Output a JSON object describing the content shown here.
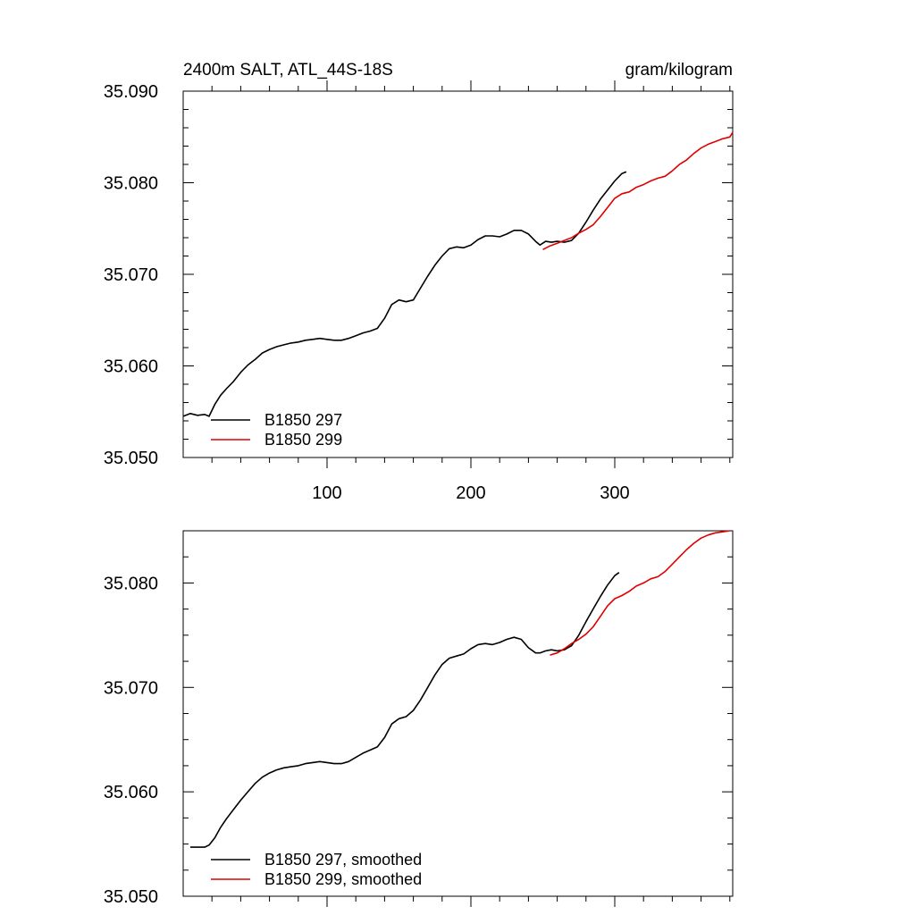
{
  "chart_data": [
    {
      "type": "line",
      "title": "2400m SALT, ATL_44S-18S",
      "units": "gram/kilogram",
      "xlabel": "",
      "ylabel": "",
      "xlim": [
        0,
        382
      ],
      "ylim": [
        35.05,
        35.09
      ],
      "x_ticks": [
        100,
        200,
        300
      ],
      "x_tick_labels": [
        "100",
        "200",
        "300"
      ],
      "y_ticks": [
        35.05,
        35.06,
        35.07,
        35.08,
        35.09
      ],
      "y_tick_labels": [
        "35.050",
        "35.060",
        "35.070",
        "35.080",
        "35.090"
      ],
      "legend_position": "bottom-left",
      "series": [
        {
          "name": "B1850 297",
          "color": "#000000",
          "x": [
            0,
            5,
            10,
            15,
            18,
            22,
            26,
            30,
            35,
            40,
            45,
            50,
            55,
            60,
            65,
            70,
            75,
            80,
            85,
            90,
            95,
            100,
            105,
            110,
            115,
            120,
            125,
            130,
            135,
            140,
            145,
            150,
            155,
            160,
            165,
            170,
            175,
            180,
            185,
            190,
            195,
            200,
            205,
            210,
            215,
            220,
            225,
            230,
            235,
            240,
            245,
            248,
            252,
            256,
            260,
            265,
            270,
            275,
            280,
            285,
            290,
            295,
            300,
            305,
            308
          ],
          "values": [
            35.0545,
            35.0548,
            35.0546,
            35.0547,
            35.0545,
            35.0558,
            35.0568,
            35.0575,
            35.0583,
            35.0593,
            35.0601,
            35.0607,
            35.0614,
            35.0618,
            35.0621,
            35.0623,
            35.0625,
            35.0626,
            35.0628,
            35.0629,
            35.063,
            35.0629,
            35.0628,
            35.0628,
            35.063,
            35.0633,
            35.0636,
            35.0638,
            35.0641,
            35.0652,
            35.0667,
            35.0672,
            35.067,
            35.0672,
            35.0685,
            35.0698,
            35.071,
            35.072,
            35.0728,
            35.073,
            35.0729,
            35.0732,
            35.0738,
            35.0742,
            35.0742,
            35.0741,
            35.0744,
            35.0748,
            35.0748,
            35.0744,
            35.0736,
            35.0732,
            35.0736,
            35.0735,
            35.0736,
            35.0735,
            35.0737,
            35.0745,
            35.0757,
            35.077,
            35.0782,
            35.0792,
            35.0802,
            35.081,
            35.0812
          ]
        },
        {
          "name": "B1850 299",
          "color": "#e00000",
          "x": [
            250,
            255,
            260,
            265,
            270,
            275,
            280,
            285,
            290,
            295,
            300,
            305,
            310,
            315,
            320,
            325,
            330,
            335,
            340,
            345,
            350,
            355,
            360,
            365,
            370,
            375,
            380,
            382
          ],
          "values": [
            35.0727,
            35.0731,
            35.0734,
            35.0737,
            35.074,
            35.0745,
            35.0749,
            35.0754,
            35.0763,
            35.0773,
            35.0783,
            35.0788,
            35.079,
            35.0795,
            35.0798,
            35.0802,
            35.0805,
            35.0807,
            35.0813,
            35.082,
            35.0825,
            35.0832,
            35.0838,
            35.0842,
            35.0845,
            35.0848,
            35.085,
            35.0855
          ]
        }
      ]
    },
    {
      "type": "line",
      "title": "",
      "xlabel": "",
      "ylabel": "",
      "xlim": [
        0,
        382
      ],
      "ylim": [
        35.05,
        35.085
      ],
      "x_ticks": [
        100,
        200,
        300
      ],
      "y_ticks": [
        35.05,
        35.06,
        35.07,
        35.08
      ],
      "y_tick_labels": [
        "35.050",
        "35.060",
        "35.070",
        "35.080"
      ],
      "legend_position": "bottom-left",
      "series": [
        {
          "name": "B1850 297, smoothed",
          "color": "#000000",
          "x": [
            5,
            10,
            15,
            18,
            22,
            26,
            30,
            35,
            40,
            45,
            50,
            55,
            60,
            65,
            70,
            75,
            80,
            85,
            90,
            95,
            100,
            105,
            110,
            115,
            120,
            125,
            130,
            135,
            140,
            145,
            150,
            155,
            160,
            165,
            170,
            175,
            180,
            185,
            190,
            195,
            200,
            205,
            210,
            215,
            220,
            225,
            230,
            235,
            240,
            245,
            248,
            252,
            256,
            260,
            265,
            270,
            275,
            280,
            285,
            290,
            295,
            300,
            303
          ],
          "values": [
            35.0547,
            35.0547,
            35.0547,
            35.0549,
            35.0556,
            35.0566,
            35.0574,
            35.0583,
            35.0592,
            35.06,
            35.0608,
            35.0614,
            35.0618,
            35.0621,
            35.0623,
            35.0624,
            35.0625,
            35.0627,
            35.0628,
            35.0629,
            35.0628,
            35.0627,
            35.0627,
            35.0629,
            35.0633,
            35.0637,
            35.064,
            35.0643,
            35.0652,
            35.0665,
            35.067,
            35.0672,
            35.0678,
            35.0688,
            35.07,
            35.0712,
            35.0722,
            35.0728,
            35.073,
            35.0732,
            35.0737,
            35.0741,
            35.0742,
            35.0741,
            35.0743,
            35.0746,
            35.0748,
            35.0746,
            35.0738,
            35.0733,
            35.0733,
            35.0735,
            35.0736,
            35.0735,
            35.0736,
            35.074,
            35.075,
            35.0763,
            35.0775,
            35.0787,
            35.0798,
            35.0807,
            35.081
          ]
        },
        {
          "name": "B1850 299, smoothed",
          "color": "#e00000",
          "x": [
            255,
            260,
            265,
            270,
            275,
            280,
            285,
            290,
            295,
            300,
            305,
            310,
            315,
            320,
            325,
            330,
            335,
            340,
            345,
            350,
            355,
            360,
            365,
            370,
            375,
            380
          ],
          "values": [
            35.0731,
            35.0733,
            35.0737,
            35.0742,
            35.0746,
            35.0751,
            35.0758,
            35.0768,
            35.0778,
            35.0785,
            35.0788,
            35.0792,
            35.0797,
            35.08,
            35.0804,
            35.0806,
            35.0811,
            35.0818,
            35.0825,
            35.0832,
            35.0838,
            35.0843,
            35.0846,
            35.0848,
            35.0849,
            35.085
          ]
        }
      ]
    }
  ]
}
